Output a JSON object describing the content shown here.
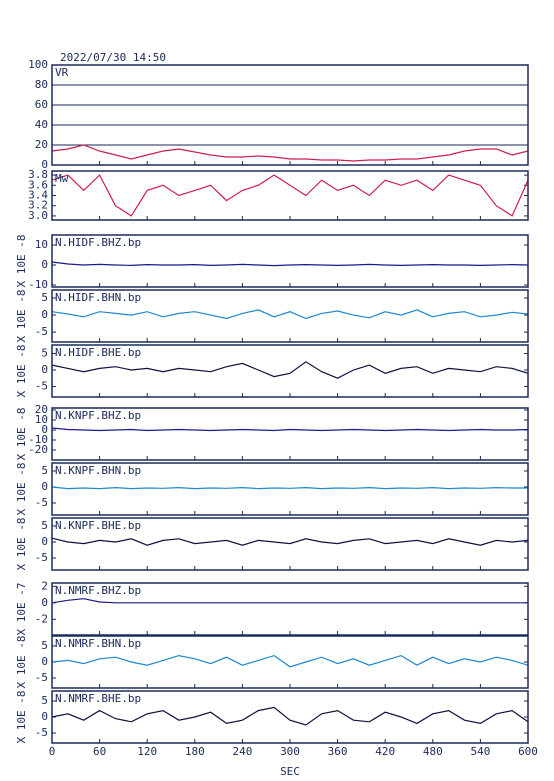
{
  "title": "2022/07/30 14:50",
  "x_label": "SEC",
  "xlim": [
    0,
    600
  ],
  "xticks": [
    0,
    60,
    120,
    180,
    240,
    300,
    360,
    420,
    480,
    540,
    600
  ],
  "x": [
    0,
    20,
    40,
    60,
    80,
    100,
    120,
    140,
    160,
    180,
    200,
    220,
    240,
    260,
    280,
    300,
    320,
    340,
    360,
    380,
    400,
    420,
    440,
    460,
    480,
    500,
    520,
    540,
    560,
    580,
    600
  ],
  "chart_data": [
    {
      "type": "line",
      "label": "VR",
      "color": "#cc1f4f",
      "grid": true,
      "ylim": [
        0,
        100
      ],
      "yticks": [
        0,
        20,
        40,
        60,
        80,
        100
      ],
      "values": [
        14,
        16,
        20,
        14,
        10,
        6,
        10,
        14,
        16,
        13,
        10,
        8,
        8,
        9,
        8,
        6,
        6,
        5,
        5,
        4,
        5,
        5,
        6,
        6,
        8,
        10,
        14,
        16,
        16,
        10,
        14
      ]
    },
    {
      "type": "line",
      "label": "Mw",
      "color": "#cc1f4f",
      "ylim": [
        2.92,
        3.88
      ],
      "yticks": [
        {
          "value": 3,
          "label": "3.0"
        },
        3.2,
        3.4,
        3.6,
        3.8
      ],
      "values": [
        3.7,
        3.8,
        3.5,
        3.8,
        3.2,
        3.0,
        3.5,
        3.6,
        3.4,
        3.5,
        3.6,
        3.3,
        3.5,
        3.6,
        3.8,
        3.6,
        3.4,
        3.7,
        3.5,
        3.6,
        3.4,
        3.7,
        3.6,
        3.7,
        3.5,
        3.8,
        3.7,
        3.6,
        3.2,
        3.0,
        3.7
      ]
    },
    {
      "type": "line",
      "label": "N.HIDF.BHZ.bp",
      "y_label": "X 10E -8",
      "color": "#1a1a8c",
      "ylim": [
        -11,
        15
      ],
      "yticks": [
        -10,
        0,
        10
      ],
      "values": [
        1.5,
        0.5,
        0,
        0.3,
        0,
        -0.2,
        0.2,
        0,
        0,
        0.2,
        -0.2,
        0,
        0.3,
        0,
        -0.3,
        0,
        0.2,
        0,
        -0.2,
        0,
        0.3,
        0,
        -0.2,
        0,
        0.2,
        0,
        0,
        -0.2,
        0,
        0.2,
        0
      ]
    },
    {
      "type": "line",
      "label": "N.HIDF.BHN.bp",
      "y_label": "X 10E -8",
      "color": "#1e88d0",
      "ylim": [
        -7.9,
        7.35
      ],
      "yticks": [
        -5,
        0,
        5
      ],
      "values": [
        1,
        0.3,
        -0.5,
        1,
        0.5,
        0,
        1,
        -0.5,
        0.5,
        1,
        0,
        -1,
        0.5,
        1.5,
        -0.5,
        1,
        -1,
        0.5,
        1.2,
        0,
        -0.8,
        1,
        0,
        1.5,
        -0.5,
        0.5,
        1,
        -0.5,
        0,
        0.8,
        0.3
      ]
    },
    {
      "type": "line",
      "label": "N.HIDF.BHE.bp",
      "y_label": "X 10E -8",
      "color": "#101040",
      "ylim": [
        -8.2,
        7.6
      ],
      "yticks": [
        -5,
        0,
        5
      ],
      "values": [
        1.5,
        0.5,
        -0.5,
        0.5,
        1,
        0,
        0.5,
        -0.5,
        0.5,
        0,
        -0.5,
        1,
        2,
        0,
        -2,
        -1,
        2.5,
        -0.5,
        -2.5,
        0,
        1.5,
        -1,
        0.5,
        1,
        -1,
        0.5,
        0,
        -0.5,
        1,
        0.5,
        -1
      ]
    },
    {
      "type": "line",
      "label": "N.KNPF.BHZ.bp",
      "y_label": "X 10E -8",
      "color": "#1a1a8c",
      "ylim": [
        -30,
        22
      ],
      "yticks": [
        -20,
        -10,
        0,
        10,
        20
      ],
      "values": [
        2,
        0.5,
        0,
        -0.5,
        0,
        0.5,
        -0.5,
        0,
        0.5,
        0,
        -0.5,
        0,
        0.5,
        0,
        -0.5,
        0.5,
        0,
        -0.5,
        0,
        0.5,
        0,
        -0.5,
        0,
        0.5,
        0,
        -0.5,
        0,
        0.5,
        0,
        0,
        0.5
      ]
    },
    {
      "type": "line",
      "label": "N.KNPF.BHN.bp",
      "y_label": "X 10E -8",
      "color": "#1e88d0",
      "ylim": [
        -8.75,
        7.5
      ],
      "yticks": [
        -5,
        0,
        5
      ],
      "values": [
        0,
        -0.5,
        -0.3,
        -0.5,
        -0.2,
        -0.5,
        -0.3,
        -0.4,
        -0.2,
        -0.5,
        -0.3,
        -0.4,
        -0.2,
        -0.5,
        -0.3,
        -0.4,
        -0.2,
        -0.5,
        -0.3,
        -0.4,
        -0.2,
        -0.5,
        -0.3,
        -0.4,
        -0.2,
        -0.5,
        -0.3,
        -0.4,
        -0.2,
        -0.3,
        -0.3
      ]
    },
    {
      "type": "line",
      "label": "N.KNPF.BHE.bp",
      "y_label": "X 10E -8",
      "color": "#101040",
      "ylim": [
        -8.75,
        7.5
      ],
      "yticks": [
        -5,
        0,
        5
      ],
      "values": [
        1.2,
        0,
        -0.5,
        0.5,
        0,
        1,
        -1,
        0.5,
        1,
        -0.5,
        0,
        0.5,
        -1,
        0.5,
        0,
        -0.5,
        1,
        0,
        -0.5,
        0.5,
        1,
        -0.5,
        0,
        0.5,
        -0.5,
        1,
        0,
        -1,
        0.5,
        0,
        0.5
      ]
    },
    {
      "type": "line",
      "label": "N.NMRF.BHZ.bp",
      "y_label": "X 10E -7",
      "color": "#1a1a8c",
      "ylim": [
        -3.9,
        2.4
      ],
      "yticks": [
        -2,
        0,
        2
      ],
      "values": [
        0,
        0.3,
        0.5,
        0.1,
        0,
        0,
        0,
        0,
        0,
        0,
        0,
        0,
        0,
        0,
        0,
        0,
        0,
        0,
        0,
        0,
        0,
        0,
        0,
        0,
        0,
        0,
        0,
        0,
        0,
        0,
        0
      ]
    },
    {
      "type": "line",
      "label": "N.NMRF.BHN.bp",
      "y_label": "X 10E -8",
      "color": "#1e88d0",
      "ylim": [
        -8.1,
        8.1
      ],
      "yticks": [
        -5,
        0,
        5
      ],
      "values": [
        0,
        0.5,
        -0.5,
        1,
        1.5,
        0,
        -1,
        0.5,
        2,
        1,
        -0.5,
        1.5,
        -1,
        0.5,
        2,
        -1.5,
        0,
        1.5,
        -0.5,
        1,
        -1,
        0.5,
        2,
        -1,
        1.5,
        -0.5,
        1,
        0,
        1.5,
        0.5,
        -1
      ]
    },
    {
      "type": "line",
      "label": "N.NMRF.BHE.bp",
      "y_label": "X 10E -8",
      "color": "#101040",
      "ylim": [
        -8.1,
        8.1
      ],
      "yticks": [
        -5,
        0,
        5
      ],
      "values": [
        0,
        1,
        -1,
        2,
        -0.5,
        -1.5,
        1,
        2,
        -1,
        0,
        1.5,
        -2,
        -1,
        2,
        3,
        -1,
        -2.5,
        1,
        2,
        -1,
        -1.5,
        1.5,
        0,
        -2,
        1,
        2,
        -1,
        -2,
        1,
        2,
        -1.5
      ]
    }
  ]
}
